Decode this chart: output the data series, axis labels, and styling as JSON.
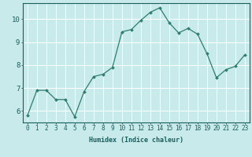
{
  "x": [
    0,
    1,
    2,
    3,
    4,
    5,
    6,
    7,
    8,
    9,
    10,
    11,
    12,
    13,
    14,
    15,
    16,
    17,
    18,
    19,
    20,
    21,
    22,
    23
  ],
  "y": [
    5.8,
    6.9,
    6.9,
    6.5,
    6.5,
    5.75,
    6.85,
    7.5,
    7.6,
    7.9,
    9.45,
    9.55,
    9.95,
    10.3,
    10.5,
    9.85,
    9.4,
    9.6,
    9.35,
    8.5,
    7.45,
    7.8,
    7.95,
    8.45
  ],
  "line_color": "#2e7d6e",
  "marker": "D",
  "marker_size": 2.0,
  "bg_color": "#c8eaea",
  "grid_color": "#ffffff",
  "xlabel": "Humidex (Indice chaleur)",
  "ylabel": "",
  "title": "",
  "xlim": [
    -0.5,
    23.5
  ],
  "ylim": [
    5.5,
    10.7
  ],
  "yticks": [
    6,
    7,
    8,
    9,
    10
  ],
  "xticks": [
    0,
    1,
    2,
    3,
    4,
    5,
    6,
    7,
    8,
    9,
    10,
    11,
    12,
    13,
    14,
    15,
    16,
    17,
    18,
    19,
    20,
    21,
    22,
    23
  ],
  "xtick_labels": [
    "0",
    "1",
    "2",
    "3",
    "4",
    "5",
    "6",
    "7",
    "8",
    "9",
    "10",
    "11",
    "12",
    "13",
    "14",
    "15",
    "16",
    "17",
    "18",
    "19",
    "20",
    "21",
    "22",
    "23"
  ],
  "font_color": "#1a5f5f",
  "label_fontsize": 6.0,
  "tick_fontsize": 5.5,
  "ytick_fontsize": 6.5,
  "linewidth": 0.9
}
